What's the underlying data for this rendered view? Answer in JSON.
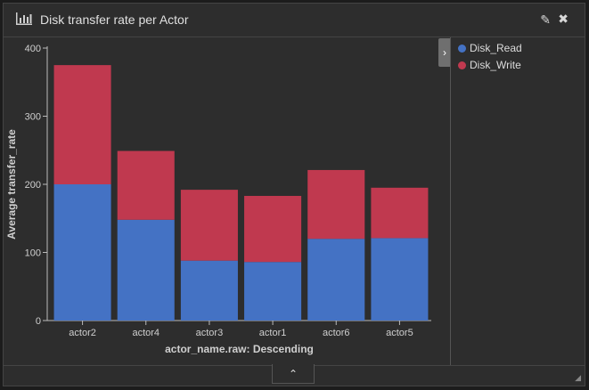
{
  "panel": {
    "title": "Disk transfer rate per Actor",
    "icons": {
      "chart": "bar-chart-icon",
      "edit": "pencil-icon",
      "close": "close-icon",
      "legend_toggle": "chevron-right-icon",
      "footer_toggle": "chevron-up-icon"
    }
  },
  "chart_data": {
    "type": "bar",
    "stacked": true,
    "categories": [
      "actor2",
      "actor4",
      "actor3",
      "actor1",
      "actor6",
      "actor5"
    ],
    "series": [
      {
        "name": "Disk_Read",
        "color": "#4472c4",
        "values": [
          200,
          148,
          88,
          86,
          120,
          121
        ]
      },
      {
        "name": "Disk_Write",
        "color": "#c0394f",
        "values": [
          175,
          101,
          104,
          97,
          101,
          74
        ]
      }
    ],
    "xlabel": "actor_name.raw: Descending",
    "ylabel": "Average transfer_rate",
    "yticks": [
      "0",
      "100",
      "200",
      "300",
      "400"
    ],
    "ylim": [
      0,
      400
    ],
    "grid": false,
    "legend_position": "right"
  }
}
